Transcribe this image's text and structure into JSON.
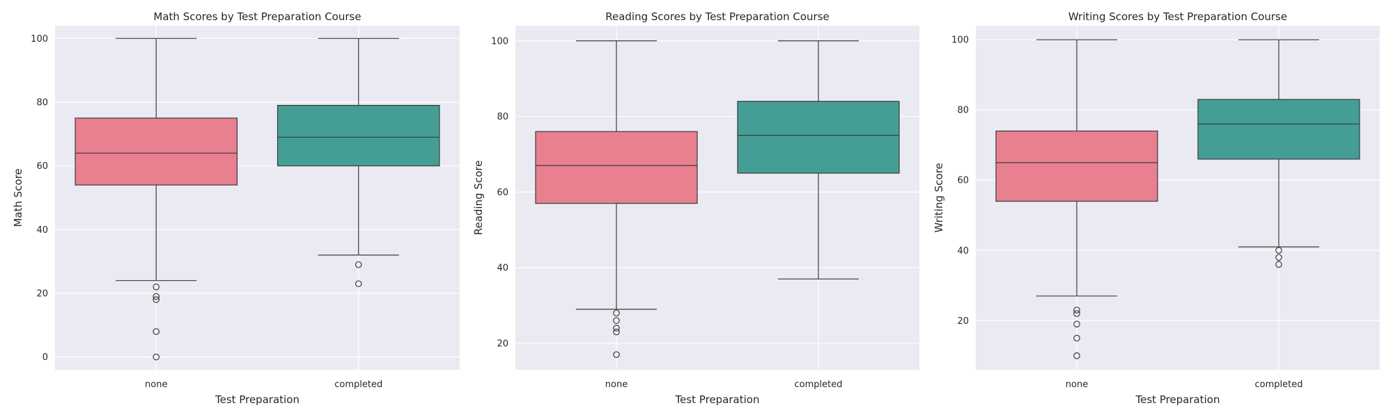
{
  "chart_data": [
    {
      "type": "box",
      "title": "Math Scores by Test Preparation Course",
      "xlabel": "Test Preparation",
      "ylabel": "Math Score",
      "categories": [
        "none",
        "completed"
      ],
      "ylim": [
        -4,
        104
      ],
      "yticks": [
        0,
        20,
        40,
        60,
        80,
        100
      ],
      "boxes": [
        {
          "category": "none",
          "color": "#e8808f",
          "whisker_low": 24,
          "q1": 54,
          "median": 64,
          "q3": 75,
          "whisker_high": 100,
          "outliers": [
            22,
            19,
            18,
            8,
            0
          ]
        },
        {
          "category": "completed",
          "color": "#449e96",
          "whisker_low": 32,
          "q1": 60,
          "median": 69,
          "q3": 79,
          "whisker_high": 100,
          "outliers": [
            29,
            23
          ]
        }
      ],
      "grid": true
    },
    {
      "type": "box",
      "title": "Reading Scores by Test Preparation Course",
      "xlabel": "Test Preparation",
      "ylabel": "Reading Score",
      "categories": [
        "none",
        "completed"
      ],
      "ylim": [
        13,
        104
      ],
      "yticks": [
        20,
        40,
        60,
        80,
        100
      ],
      "boxes": [
        {
          "category": "none",
          "color": "#e8808f",
          "whisker_low": 29,
          "q1": 57,
          "median": 67,
          "q3": 76,
          "whisker_high": 100,
          "outliers": [
            28,
            26,
            24,
            23,
            17
          ]
        },
        {
          "category": "completed",
          "color": "#449e96",
          "whisker_low": 37,
          "q1": 65,
          "median": 75,
          "q3": 84,
          "whisker_high": 100,
          "outliers": []
        }
      ],
      "grid": true
    },
    {
      "type": "box",
      "title": "Writing Scores by Test Preparation Course",
      "xlabel": "Test Preparation",
      "ylabel": "Writing Score",
      "categories": [
        "none",
        "completed"
      ],
      "ylim": [
        6,
        104
      ],
      "yticks": [
        20,
        40,
        60,
        80,
        100
      ],
      "boxes": [
        {
          "category": "none",
          "color": "#e8808f",
          "whisker_low": 27,
          "q1": 54,
          "median": 65,
          "q3": 74,
          "whisker_high": 100,
          "outliers": [
            23,
            22,
            19,
            15,
            10
          ]
        },
        {
          "category": "completed",
          "color": "#449e96",
          "whisker_low": 41,
          "q1": 66,
          "median": 76,
          "q3": 83,
          "whisker_high": 100,
          "outliers": [
            40,
            38,
            36
          ]
        }
      ],
      "grid": true
    }
  ],
  "style": {
    "axes_bg": "#eaeaf2",
    "grid_color": "#ffffff",
    "line_color": "#3a3a3a",
    "text_color": "#262626"
  }
}
